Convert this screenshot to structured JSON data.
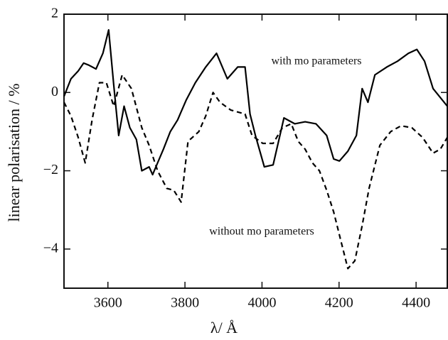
{
  "chart_data": {
    "type": "line",
    "xlabel": "λ/ Å",
    "ylabel": "linear polarisation / %",
    "xlim": [
      3486,
      4481
    ],
    "xticks": [
      3600,
      3800,
      4000,
      4200,
      4400
    ],
    "ylim": [
      -5,
      2
    ],
    "yticks": [
      2,
      0,
      {
        "value": -2,
        "label": "−2"
      },
      {
        "value": -4,
        "label": "−4"
      }
    ],
    "series": [
      {
        "name": "with mo parameters",
        "color": "#000000",
        "linestyle": "solid",
        "x": [
          3486,
          3504,
          3523,
          3537,
          3550,
          3569,
          3587,
          3602,
          3615,
          3628,
          3642,
          3657,
          3674,
          3688,
          3707,
          3716,
          3729,
          3744,
          3762,
          3781,
          3803,
          3827,
          3854,
          3882,
          3910,
          3937,
          3956,
          3969,
          3983,
          4006,
          4029,
          4057,
          4085,
          4112,
          4140,
          4168,
          4186,
          4201,
          4223,
          4245,
          4260,
          4275,
          4293,
          4324,
          4352,
          4380,
          4402,
          4422,
          4444,
          4481
        ],
        "values": [
          -0.1,
          0.35,
          0.55,
          0.75,
          0.7,
          0.6,
          1.0,
          1.6,
          0.2,
          -1.1,
          -0.35,
          -0.9,
          -1.2,
          -2.0,
          -1.9,
          -2.1,
          -1.8,
          -1.45,
          -1.0,
          -0.7,
          -0.2,
          0.25,
          0.65,
          1.0,
          0.35,
          0.65,
          0.65,
          -0.55,
          -1.1,
          -1.9,
          -1.85,
          -0.65,
          -0.8,
          -0.75,
          -0.8,
          -1.1,
          -1.7,
          -1.75,
          -1.5,
          -1.1,
          0.1,
          -0.25,
          0.45,
          0.65,
          0.8,
          1.0,
          1.1,
          0.8,
          0.1,
          -0.35
        ]
      },
      {
        "name": "without mo parameters",
        "color": "#000000",
        "linestyle": "dashed",
        "x": [
          3486,
          3504,
          3523,
          3541,
          3559,
          3578,
          3596,
          3615,
          3637,
          3661,
          3688,
          3707,
          3729,
          3753,
          3771,
          3790,
          3808,
          3836,
          3854,
          3873,
          3891,
          3919,
          3956,
          3974,
          4002,
          4029,
          4053,
          4076,
          4094,
          4112,
          4131,
          4149,
          4168,
          4186,
          4205,
          4223,
          4241,
          4260,
          4278,
          4306,
          4334,
          4361,
          4389,
          4417,
          4444,
          4463,
          4481
        ],
        "values": [
          -0.25,
          -0.6,
          -1.15,
          -1.8,
          -0.7,
          0.25,
          0.25,
          -0.35,
          0.45,
          0.1,
          -0.9,
          -1.35,
          -2.0,
          -2.45,
          -2.5,
          -2.8,
          -1.25,
          -1.0,
          -0.6,
          0.0,
          -0.25,
          -0.45,
          -0.55,
          -1.1,
          -1.3,
          -1.3,
          -0.9,
          -0.8,
          -1.25,
          -1.45,
          -1.8,
          -2.0,
          -2.5,
          -3.05,
          -3.8,
          -4.5,
          -4.3,
          -3.4,
          -2.45,
          -1.35,
          -1.0,
          -0.85,
          -0.9,
          -1.15,
          -1.55,
          -1.45,
          -1.15
        ]
      }
    ]
  }
}
